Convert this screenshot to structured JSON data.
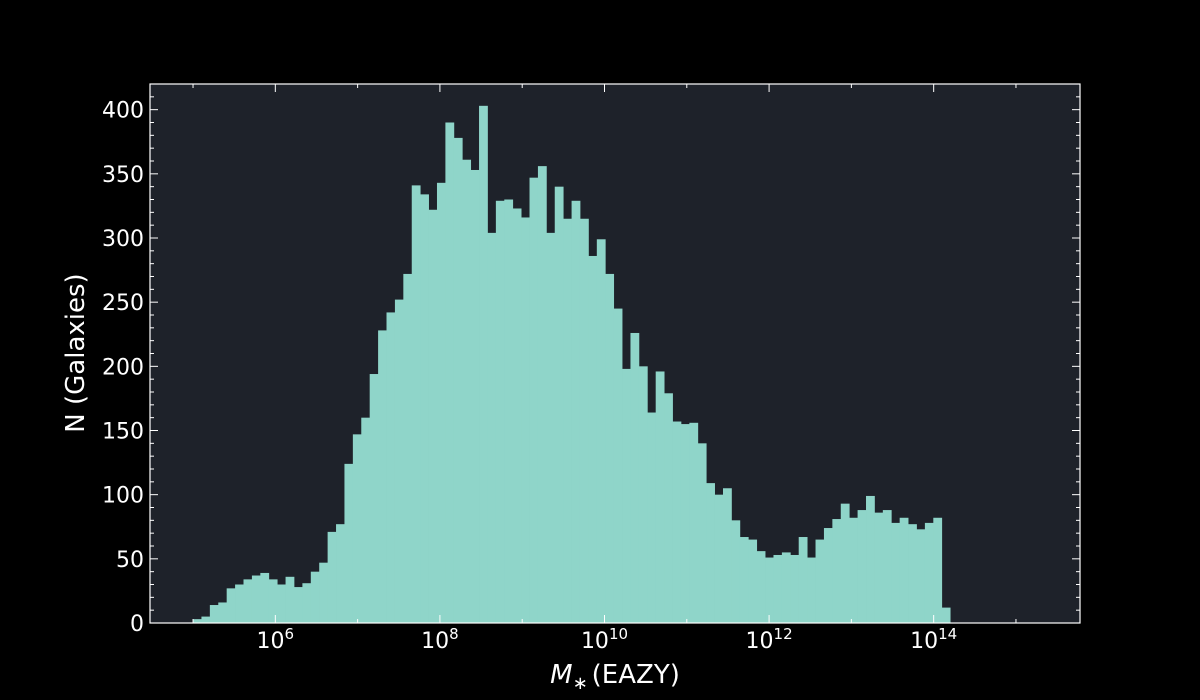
{
  "chart_data": {
    "type": "bar",
    "title": "",
    "xlabel_symbol": "M",
    "xlabel_subscript": "∗",
    "xlabel_suffix": "(EAZY)",
    "ylabel": "N (Galaxies)",
    "x_scale": "log",
    "xlim": [
      30000.0,
      6000000000000000.0
    ],
    "ylim": [
      0,
      420
    ],
    "grid": false,
    "legend": "none",
    "colors": {
      "background": "#000000",
      "plot_area": "#1e222a",
      "bar": "#8fd5c9",
      "axes": "#ffffff"
    },
    "x_ticks": [
      {
        "value": 1000000,
        "base": "10",
        "exponent": "6"
      },
      {
        "value": 100000000,
        "base": "10",
        "exponent": "8"
      },
      {
        "value": 10000000000,
        "base": "10",
        "exponent": "10"
      },
      {
        "value": 1000000000000,
        "base": "10",
        "exponent": "12"
      },
      {
        "value": 100000000000000,
        "base": "10",
        "exponent": "14"
      }
    ],
    "y_ticks": [
      {
        "value": 0,
        "label": "0"
      },
      {
        "value": 50,
        "label": "50"
      },
      {
        "value": 100,
        "label": "100"
      },
      {
        "value": 150,
        "label": "150"
      },
      {
        "value": 200,
        "label": "200"
      },
      {
        "value": 250,
        "label": "250"
      },
      {
        "value": 300,
        "label": "300"
      },
      {
        "value": 350,
        "label": "350"
      },
      {
        "value": 400,
        "label": "400"
      }
    ],
    "bins": {
      "log10_x_start": 5.0,
      "log10_x_end": 14.2,
      "counts": [
        3,
        5,
        14,
        16,
        27,
        30,
        34,
        37,
        39,
        34,
        30,
        36,
        28,
        31,
        40,
        47,
        71,
        77,
        124,
        147,
        160,
        194,
        228,
        242,
        252,
        272,
        341,
        334,
        322,
        343,
        390,
        378,
        361,
        353,
        403,
        304,
        329,
        330,
        323,
        316,
        347,
        356,
        304,
        340,
        315,
        329,
        315,
        286,
        299,
        272,
        245,
        198,
        226,
        200,
        164,
        196,
        179,
        157,
        155,
        156,
        140,
        109,
        100,
        105,
        80,
        67,
        65,
        56,
        51,
        53,
        55,
        53,
        67,
        51,
        65,
        74,
        81,
        93,
        82,
        88,
        99,
        86,
        88,
        78,
        82,
        77,
        73,
        78,
        82,
        12
      ]
    }
  }
}
